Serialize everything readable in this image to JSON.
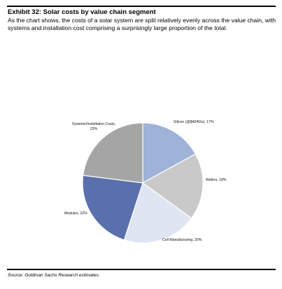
{
  "exhibit": {
    "title": "Exhibit 32:  Solar costs by value chain segment",
    "description": "As the chart shows, the costs of a solar system are split relatively evenly across the value chain, with systems and installation cost comprising a surprisingly large proportion of the total."
  },
  "chart_data": {
    "type": "pie",
    "start_angle_deg": 0,
    "direction": "clockwise",
    "slices": [
      {
        "label": "Silicon (@$40/Kilo), 17%",
        "value": 17,
        "color": "#9fb2d8"
      },
      {
        "label": "Wafers, 18%",
        "value": 18,
        "color": "#c9c9c9"
      },
      {
        "label": "Cell Manufacturing, 20%",
        "value": 20,
        "color": "#dfe5f2"
      },
      {
        "label": "Modules, 22%",
        "value": 22,
        "color": "#5a70ac"
      },
      {
        "label": "Systems/Installation Costs, 23%",
        "value": 23,
        "color": "#a5a5a5"
      }
    ]
  },
  "source": "Source: Goldman Sachs Research estimates."
}
